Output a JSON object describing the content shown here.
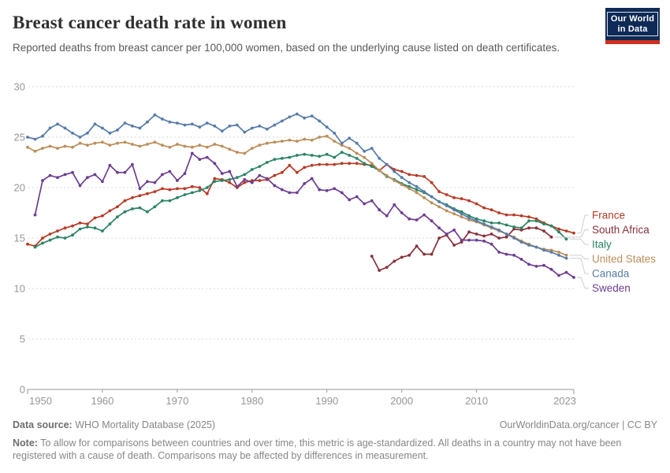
{
  "header": {
    "title": "Breast cancer death rate in women",
    "subtitle": "Reported deaths from breast cancer per 100,000 women, based on the underlying cause listed on death certificates.",
    "logo": {
      "line1": "Our World",
      "line2": "in Data"
    }
  },
  "footer": {
    "datasource_label": "Data source:",
    "datasource": " WHO Mortality Database (2025)",
    "link": "OurWorldinData.org/cancer | CC BY",
    "note_label": "Note:",
    "note": " To allow for comparisons between countries and over time, this metric is age-standardized. All deaths in a country may not have been registered with a cause of death. Comparisons may be affected by differences in measurement."
  },
  "chart_data": {
    "type": "line",
    "title": "Breast cancer death rate in women",
    "xlabel": "",
    "ylabel": "",
    "xlim": [
      1950,
      2023
    ],
    "ylim": [
      0,
      30
    ],
    "x_tick_labels": [
      "1950",
      "1960",
      "1970",
      "1980",
      "1990",
      "2000",
      "2010",
      "2023"
    ],
    "x_ticks": [
      1950,
      1960,
      1970,
      1980,
      1990,
      2000,
      2010,
      2023
    ],
    "y_ticks": [
      0,
      5,
      10,
      15,
      20,
      25,
      30
    ],
    "grid": "horizontal-dashed",
    "legend_position": "right",
    "axis_color": "#969696",
    "grid_color": "#dadada",
    "connector_color": "#cfcfcf",
    "series": [
      {
        "name": "France",
        "color": "#B83A25",
        "start_year": 1950,
        "values": [
          14.4,
          14.2,
          15.0,
          15.4,
          15.7,
          16.0,
          16.2,
          16.5,
          16.4,
          17.0,
          17.2,
          17.7,
          18.1,
          18.7,
          19.0,
          19.2,
          19.4,
          19.6,
          19.9,
          19.8,
          19.9,
          19.9,
          20.1,
          20.0,
          19.4,
          20.9,
          20.8,
          20.5,
          20.0,
          20.5,
          20.7,
          20.7,
          20.8,
          21.2,
          21.5,
          22.2,
          21.5,
          22.0,
          22.2,
          22.3,
          22.3,
          22.3,
          22.4,
          22.4,
          22.4,
          22.3,
          22.2,
          21.7,
          22.3,
          21.8,
          21.6,
          21.3,
          21.2,
          21.1,
          20.5,
          19.6,
          19.3,
          19.0,
          18.9,
          18.7,
          18.4,
          18.0,
          17.8,
          17.5,
          17.3,
          17.3,
          17.2,
          17.1,
          16.9,
          16.5,
          16.2,
          15.9,
          15.7,
          15.5
        ]
      },
      {
        "name": "South Africa",
        "color": "#883039",
        "start_year": 1996,
        "values": [
          13.2,
          11.8,
          12.1,
          12.7,
          13.1,
          13.3,
          14.2,
          13.4,
          13.4,
          15.0,
          15.3,
          14.3,
          14.6,
          15.6,
          15.4,
          15.2,
          15.4,
          15.0,
          15.1,
          15.9,
          15.8,
          16.0,
          16.0,
          15.7,
          15.1
        ]
      },
      {
        "name": "Italy",
        "color": "#2C8465",
        "start_year": 1951,
        "values": [
          14.1,
          14.5,
          14.8,
          15.1,
          15.0,
          15.3,
          15.9,
          16.1,
          16.0,
          15.7,
          16.4,
          17.1,
          17.6,
          17.9,
          18.0,
          17.6,
          18.1,
          18.7,
          18.7,
          19.0,
          19.3,
          19.5,
          19.7,
          20.0,
          20.6,
          20.7,
          20.8,
          21.0,
          21.3,
          21.8,
          22.1,
          22.5,
          22.8,
          22.9,
          23.0,
          23.2,
          23.3,
          23.2,
          23.1,
          23.3,
          23.0,
          23.5,
          23.2,
          22.9,
          22.4,
          22.1,
          21.7,
          21.1,
          20.8,
          20.4,
          20.1,
          19.8,
          19.5,
          19.1,
          18.6,
          18.3,
          17.9,
          17.6,
          17.2,
          16.9,
          16.7,
          16.5,
          16.5,
          16.3,
          16.1,
          16.0,
          16.7,
          16.7,
          16.4,
          16.2,
          15.6,
          14.9
        ]
      },
      {
        "name": "United States",
        "color": "#BC8E5A",
        "start_year": 1950,
        "values": [
          24.0,
          23.6,
          23.9,
          24.1,
          23.9,
          24.1,
          24.0,
          24.4,
          24.2,
          24.4,
          24.5,
          24.2,
          24.4,
          24.5,
          24.3,
          24.1,
          24.3,
          24.5,
          24.2,
          24.0,
          24.3,
          24.1,
          24.0,
          24.2,
          24.0,
          24.3,
          24.1,
          23.8,
          23.5,
          23.4,
          23.9,
          24.2,
          24.4,
          24.5,
          24.6,
          24.7,
          24.6,
          24.8,
          24.7,
          25.0,
          25.1,
          24.6,
          24.2,
          23.9,
          23.4,
          23.0,
          22.4,
          21.7,
          21.2,
          20.7,
          20.3,
          19.9,
          19.5,
          19.0,
          18.5,
          18.1,
          17.7,
          17.4,
          17.1,
          16.8,
          16.6,
          16.3,
          16.0,
          15.7,
          15.4,
          15.1,
          14.7,
          14.4,
          14.1,
          13.9,
          13.8,
          13.6,
          13.3
        ]
      },
      {
        "name": "Canada",
        "color": "#577CA9",
        "start_year": 1950,
        "values": [
          25.0,
          24.8,
          25.1,
          25.9,
          26.3,
          25.9,
          25.4,
          25.0,
          25.4,
          26.3,
          25.9,
          25.4,
          25.7,
          26.4,
          26.1,
          25.9,
          26.5,
          27.2,
          26.8,
          26.5,
          26.4,
          26.2,
          26.3,
          26.0,
          26.4,
          26.1,
          25.6,
          26.1,
          26.2,
          25.5,
          25.9,
          26.1,
          25.8,
          26.2,
          26.6,
          27.0,
          27.3,
          26.9,
          27.1,
          26.6,
          26.0,
          25.4,
          24.4,
          24.9,
          24.4,
          23.6,
          23.9,
          22.9,
          22.3,
          21.6,
          21.0,
          20.5,
          20.1,
          19.6,
          19.1,
          18.6,
          18.2,
          17.8,
          17.4,
          17.0,
          16.7,
          16.4,
          16.1,
          15.8,
          15.4,
          15.0,
          14.6,
          14.3,
          14.1,
          13.8,
          13.6,
          13.3,
          13.0
        ]
      },
      {
        "name": "Sweden",
        "color": "#6D3E91",
        "start_year": 1951,
        "values": [
          17.3,
          20.7,
          21.2,
          21.0,
          21.3,
          21.5,
          20.2,
          21.0,
          21.3,
          20.6,
          22.2,
          21.5,
          21.5,
          22.3,
          19.9,
          20.6,
          20.5,
          21.3,
          21.6,
          20.7,
          21.4,
          23.4,
          22.8,
          23.0,
          22.4,
          21.4,
          21.6,
          20.1,
          20.8,
          20.5,
          21.2,
          20.9,
          20.2,
          19.8,
          19.5,
          19.5,
          20.4,
          20.9,
          19.8,
          19.7,
          19.9,
          19.5,
          18.8,
          19.1,
          18.4,
          18.7,
          17.8,
          17.2,
          18.3,
          17.5,
          16.9,
          16.8,
          17.3,
          16.7,
          16.0,
          15.4,
          15.8,
          14.8,
          14.8,
          14.8,
          14.7,
          14.4,
          13.6,
          13.4,
          13.3,
          12.9,
          12.4,
          12.2,
          12.3,
          11.9,
          11.3,
          11.6,
          11.1
        ]
      }
    ]
  }
}
